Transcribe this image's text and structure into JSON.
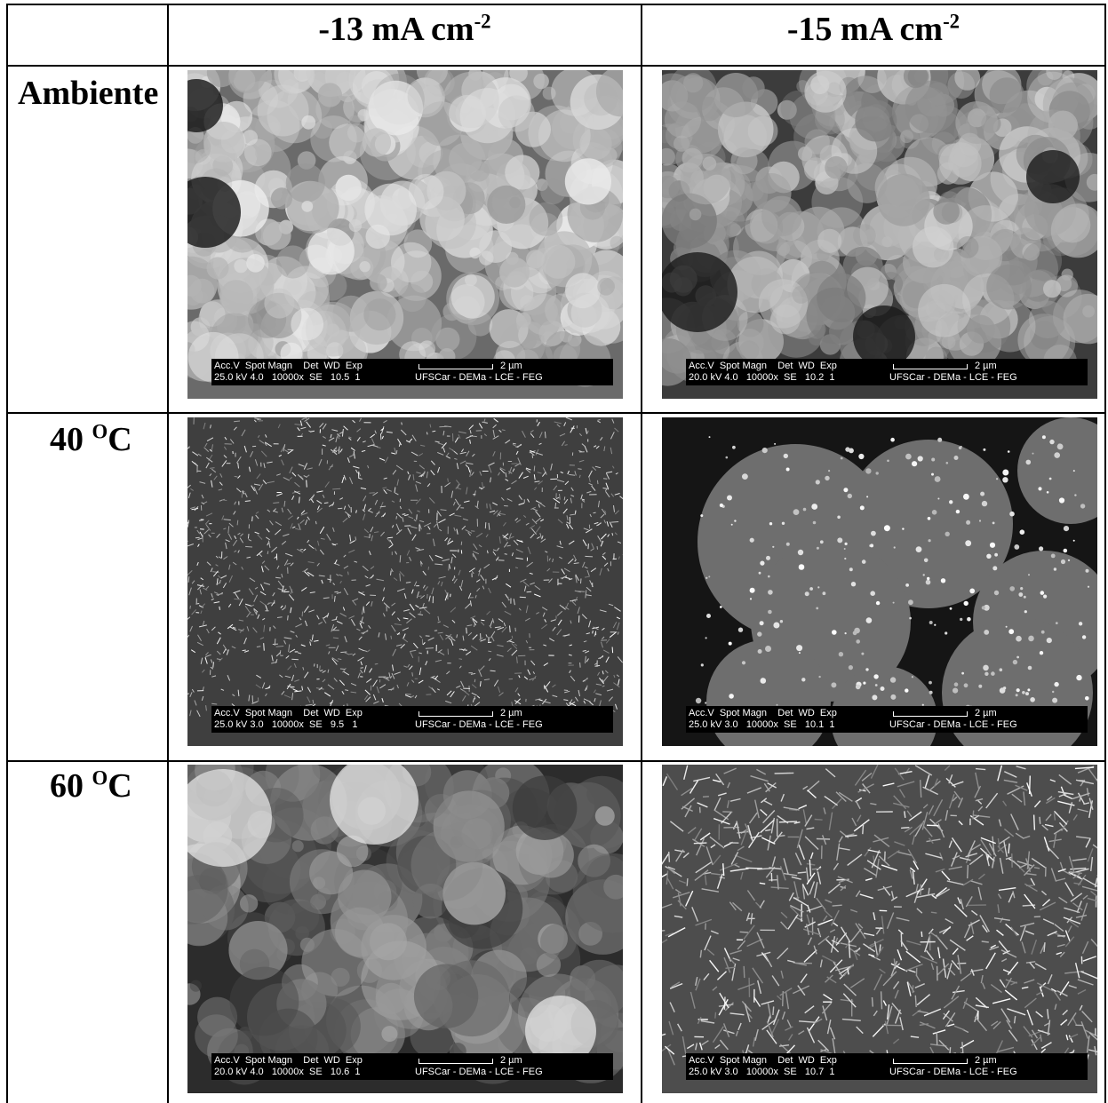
{
  "table": {
    "columns": [
      {
        "label": "-13 mA cm",
        "sup": "-2"
      },
      {
        "label": "-15 mA cm",
        "sup": "-2"
      }
    ],
    "rows": [
      {
        "label": "Ambiente",
        "sup": "",
        "suffix": ""
      },
      {
        "label": "40 ",
        "sup": "O",
        "suffix": "C"
      },
      {
        "label": "60 ",
        "sup": "O",
        "suffix": "C"
      }
    ]
  },
  "sem_header": "Acc.V  Spot Magn    Det  WD  Exp",
  "sem_scale": "2 µm",
  "sem_org": "UFSCar - DEMa - LCE - FEG",
  "images": [
    {
      "values": "25.0 kV 4.0   10000x  SE   10.5  1",
      "texture": "cauliflower-bright"
    },
    {
      "values": "20.0 kV 4.0   10000x  SE   10.2  1",
      "texture": "cauliflower-dark"
    },
    {
      "values": "25.0 kV 3.0   10000x  SE   9.5   1",
      "texture": "fine-needles"
    },
    {
      "values": "25.0 kV 3.0   10000x  SE   10.1  1",
      "texture": "plates"
    },
    {
      "values": "20.0 kV 4.0   10000x  SE   10.6  1",
      "texture": "fuzzy-clusters"
    },
    {
      "values": "25.0 kV 3.0   10000x  SE   10.7  1",
      "texture": "flakes"
    }
  ]
}
